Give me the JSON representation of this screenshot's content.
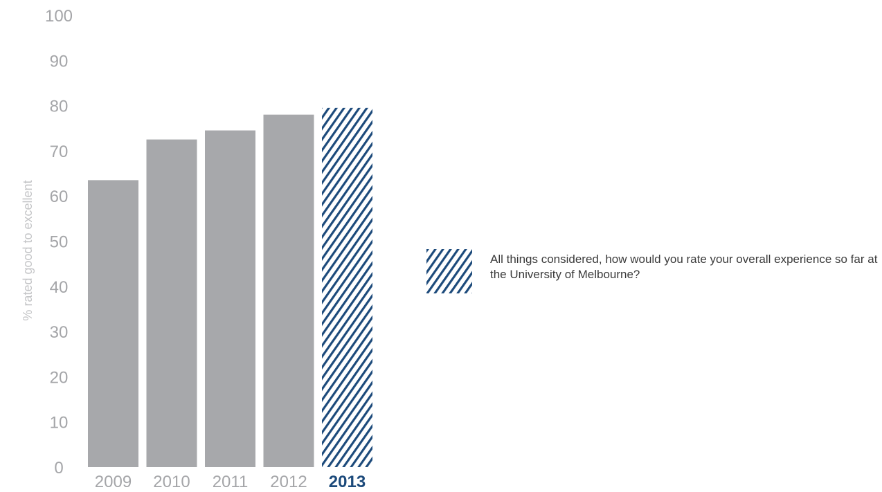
{
  "chart_data": {
    "type": "bar",
    "categories": [
      "2009",
      "2010",
      "2011",
      "2012",
      "2013"
    ],
    "values": [
      63.5,
      72.5,
      74.5,
      78,
      79.5
    ],
    "highlight_index": 4,
    "ylabel": "% rated good to excellent",
    "ylim": [
      0,
      100
    ],
    "yticks": [
      "0",
      "10",
      "20",
      "30",
      "40",
      "50",
      "60",
      "70",
      "80",
      "90",
      "100"
    ],
    "grid": false,
    "legend_position": "right",
    "colors": {
      "bar": "#a7a8ab",
      "highlight": "#1c4a7b",
      "tick_text": "#a4a5a8",
      "axis_title": "#c4c5c7"
    }
  },
  "legend": {
    "text": "All things considered, how would you rate your overall experience so far at the University of Melbourne?",
    "swatch_icon": "diagonal-hatch"
  }
}
